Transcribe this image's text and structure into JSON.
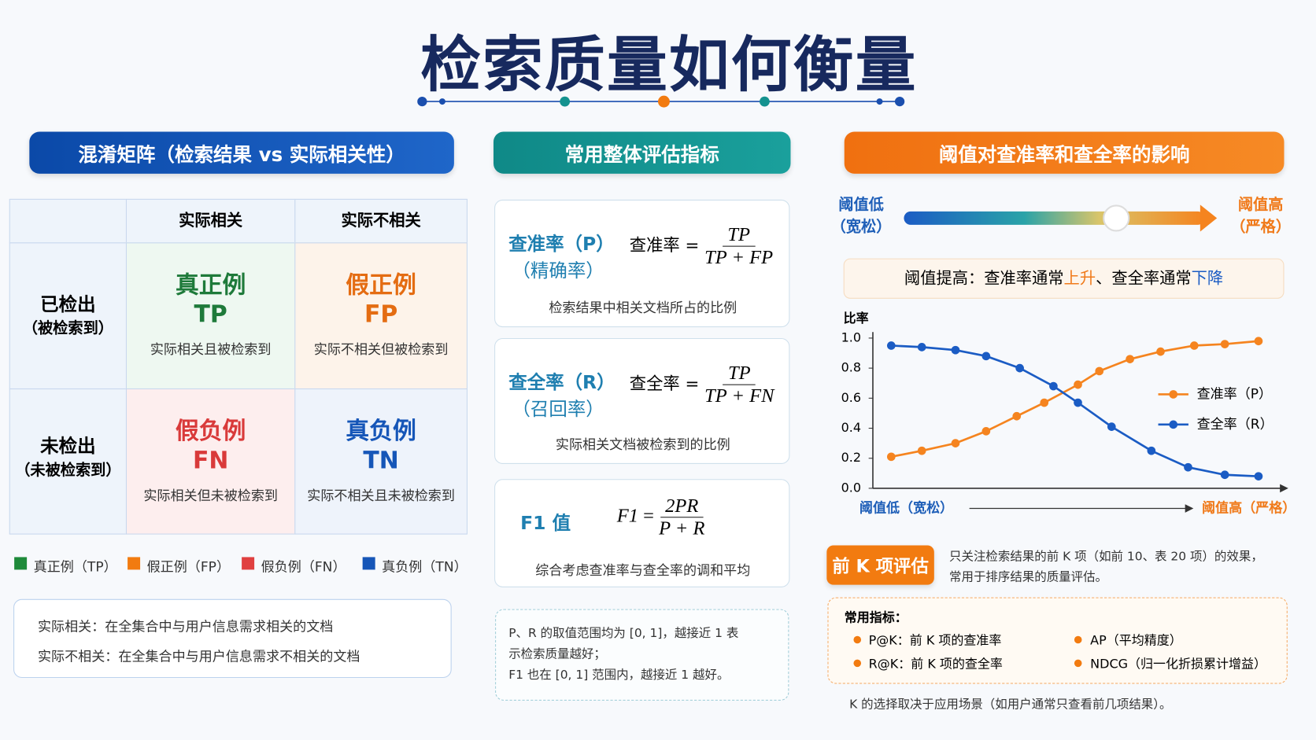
{
  "title": "检索质量如何衡量",
  "matrix": {
    "header": "混淆矩阵（检索结果 vs 实际相关性）",
    "columns": [
      "实际相关",
      "实际不相关"
    ],
    "rows": [
      {
        "label": "已检出",
        "sub": "（被检索到）",
        "cells": [
          {
            "name": "真正例",
            "abbr": "TP",
            "desc": "实际相关且被检索到"
          },
          {
            "name": "假正例",
            "abbr": "FP",
            "desc": "实际不相关但被检索到"
          }
        ]
      },
      {
        "label": "未检出",
        "sub": "（未被检索到）",
        "cells": [
          {
            "name": "假负例",
            "abbr": "FN",
            "desc": "实际相关但未被检索到"
          },
          {
            "name": "真负例",
            "abbr": "TN",
            "desc": "实际不相关且未被检索到"
          }
        ]
      }
    ],
    "legend": [
      "真正例（TP）",
      "假正例（FP）",
      "假负例（FN）",
      "真负例（TN）"
    ],
    "notes": [
      "实际相关：在全集合中与用户信息需求相关的文档",
      "实际不相关：在全集合中与用户信息需求不相关的文档"
    ]
  },
  "metrics": {
    "header": "常用整体评估指标",
    "cards": [
      {
        "name": "查准率（P）",
        "alias": "（精确率）",
        "lhs": "查准率",
        "eq": "=",
        "numerator": "TP",
        "denominator": "TP + FP",
        "desc": "检索结果中相关文档所占的比例"
      },
      {
        "name": "查全率（R）",
        "alias": "（召回率）",
        "lhs": "查全率",
        "eq": "=",
        "numerator": "TP",
        "denominator": "TP + FN",
        "desc": "实际相关文档被检索到的比例"
      },
      {
        "name": "F1 值",
        "lhs": "F1",
        "eq": "=",
        "numerator": "2PR",
        "denominator": "P + R",
        "desc": "综合考虑查准率与查全率的调和平均"
      }
    ],
    "note": [
      "P、R 的取值范围均为 [0, 1]，越接近 1 表",
      "示检索质量越好；",
      "F1 也在 [0, 1] 范围内，越接近 1 越好。"
    ]
  },
  "threshold": {
    "header": "阈值对查准率和查全率的影响",
    "low": "阈值低",
    "low_sub": "（宽松）",
    "high": "阈值高",
    "high_sub": "（严格）",
    "callout": [
      "阈值提高：查准率通常",
      "上升",
      "、查全率通常",
      "下降"
    ]
  },
  "chart_data": {
    "type": "line",
    "ylabel": "比率",
    "x_start_label": "阈值低（宽松）",
    "x_end_label": "阈值高（严格）",
    "xlim": [
      -0.6,
      12.7
    ],
    "ylim": [
      0,
      1.04
    ],
    "yticks": [
      {
        "value": 0,
        "label": "0.0"
      },
      {
        "value": 0.2,
        "label": "0.2"
      },
      {
        "value": 0.4,
        "label": "0.4"
      },
      {
        "value": 0.6,
        "label": "0.6"
      },
      {
        "value": 0.8,
        "label": "0.8"
      },
      {
        "value": 1,
        "label": "1.0"
      }
    ],
    "legend": "right",
    "series": [
      {
        "name": "查准率（P）",
        "color": "#f5841f",
        "x": [
          0,
          1,
          2.1,
          3.1,
          4.1,
          5,
          6.1,
          6.8,
          7.8,
          8.8,
          9.9,
          10.9,
          12
        ],
        "values": [
          0.21,
          0.25,
          0.3,
          0.38,
          0.48,
          0.57,
          0.69,
          0.78,
          0.86,
          0.91,
          0.95,
          0.96,
          0.98
        ]
      },
      {
        "name": "查全率（R）",
        "color": "#1b5cc4",
        "x": [
          0,
          1,
          2.1,
          3.1,
          4.2,
          5.3,
          6.1,
          7.2,
          8.5,
          9.7,
          10.9,
          12
        ],
        "values": [
          0.95,
          0.94,
          0.92,
          0.88,
          0.8,
          0.68,
          0.57,
          0.41,
          0.25,
          0.14,
          0.09,
          0.08
        ]
      }
    ]
  },
  "topk": {
    "badge": "前 K 项评估",
    "desc": [
      "只关注检索结果的前 K 项（如前 10、表 20 项）的效果，",
      "常用于排序结果的质量评估。"
    ],
    "box_title": "常用指标：",
    "items": [
      "P@K：前 K 项的查准率",
      "R@K：前 K 项的查全率",
      "AP（平均精度）",
      "NDCG（归一化折损累计增益）"
    ],
    "footer": "K 的选择取决于应用场景（如用户通常只查看前几项结果）。"
  }
}
